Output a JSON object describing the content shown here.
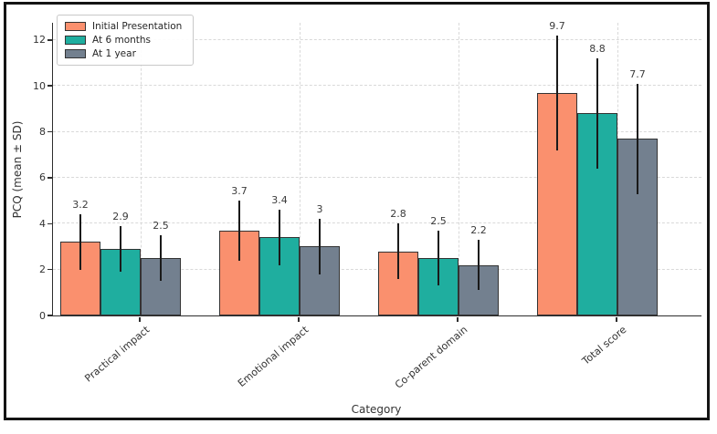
{
  "figure": {
    "background": "#ffffff",
    "border_color": "#141414"
  },
  "chart_data": {
    "type": "bar",
    "title": "",
    "xlabel": "Category",
    "ylabel": "PCQ (mean ± SD)",
    "categories": [
      "Practical impact",
      "Emotional impact",
      "Co-parent domain",
      "Total score"
    ],
    "series": [
      {
        "name": "Initial Presentation",
        "color": "#FA906E",
        "values": [
          3.2,
          3.7,
          2.8,
          9.7
        ],
        "errors": [
          1.2,
          1.3,
          1.2,
          2.5
        ],
        "value_labels": [
          "3.2",
          "3.7",
          "2.8",
          "9.7"
        ]
      },
      {
        "name": "At 6 months",
        "color": "#1FAE9F",
        "values": [
          2.9,
          3.4,
          2.5,
          8.8
        ],
        "errors": [
          1.0,
          1.2,
          1.2,
          2.4
        ],
        "value_labels": [
          "2.9",
          "3.4",
          "2.5",
          "8.8"
        ]
      },
      {
        "name": "At 1 year",
        "color": "#73808F",
        "values": [
          2.5,
          3.0,
          2.2,
          7.7
        ],
        "errors": [
          1.0,
          1.2,
          1.1,
          2.4
        ],
        "value_labels": [
          "2.5",
          "3",
          "2.2",
          "7.7"
        ]
      }
    ],
    "yticks": [
      0,
      2,
      4,
      6,
      8,
      10,
      12
    ],
    "ytick_labels": [
      "0",
      "2",
      "4",
      "6",
      "8",
      "10",
      "12"
    ],
    "ylim": [
      0,
      12.75
    ],
    "grid": "dashed light-gray, horizontal at y ticks and vertical at category centers",
    "legend_position": "upper left",
    "error_bars": "plain vertical lines, no caps",
    "bar_edge_color": "#333333",
    "error_bar_color": "#1a1a1a",
    "grid_color": "#d9d9d9",
    "text_color": "#333333"
  }
}
